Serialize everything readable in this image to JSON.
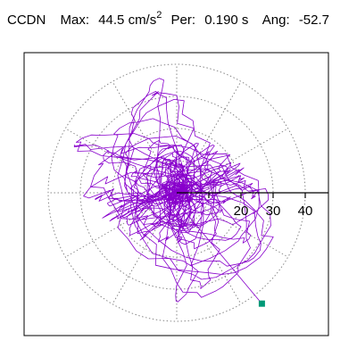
{
  "header": {
    "station": "CCDN",
    "max_label": "Max:",
    "max_value": "44.5 cm/s",
    "max_exponent": "2",
    "per_label": "Per:",
    "per_value": "0.190 s",
    "ang_label": "Ang:",
    "ang_value": "-52.7"
  },
  "chart_data": {
    "type": "scatter",
    "description_units": "cm/s^2",
    "radial_ticks": [
      10,
      20,
      30,
      40
    ],
    "tick_labels": [
      "20",
      "30",
      "40"
    ],
    "r_max": 50,
    "angular_gridlines_deg": [
      0,
      30,
      60,
      90,
      120,
      150,
      180,
      210,
      240,
      270,
      300,
      330
    ],
    "grid": true,
    "trace_color": "#8800cc",
    "end_marker_color": "#009977",
    "max_amplitude": 44.5,
    "principal_angle_deg": -52.7,
    "end_point": {
      "x": 26.5,
      "y": -34.5
    }
  }
}
